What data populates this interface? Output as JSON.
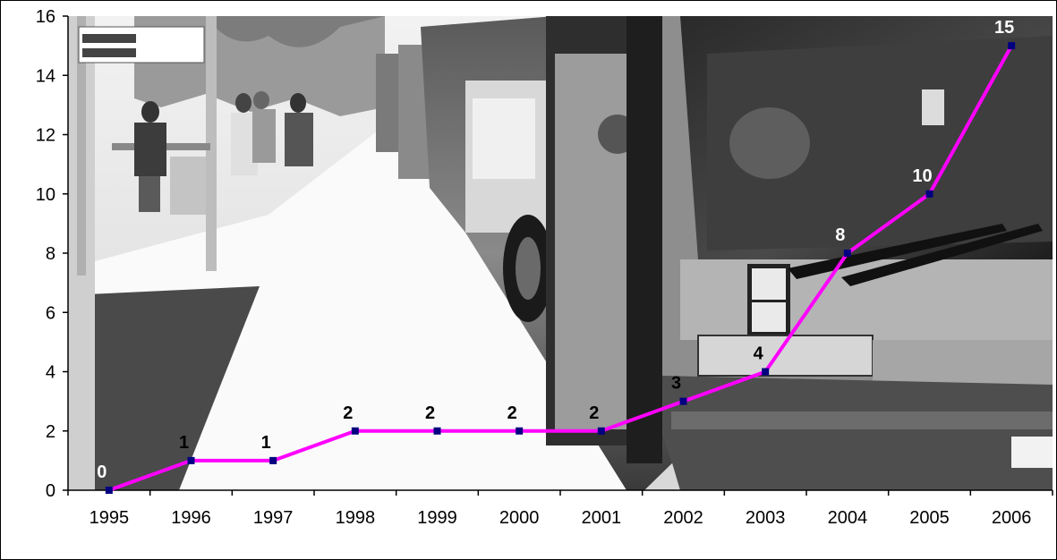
{
  "chart_data": {
    "type": "line",
    "categories": [
      "1995",
      "1996",
      "1997",
      "1998",
      "1999",
      "2000",
      "2001",
      "2002",
      "2003",
      "2004",
      "2005",
      "2006"
    ],
    "values": [
      0,
      1,
      1,
      2,
      2,
      2,
      2,
      3,
      4,
      8,
      10,
      15
    ],
    "data_labels": [
      "0",
      "1",
      "1",
      "2",
      "2",
      "2",
      "2",
      "3",
      "4",
      "8",
      "10",
      "15"
    ],
    "y_ticks": [
      "0",
      "2",
      "4",
      "6",
      "8",
      "10",
      "12",
      "14",
      "16"
    ],
    "ylim": [
      0,
      16
    ],
    "title": "",
    "xlabel": "",
    "ylabel": "",
    "grid": false,
    "legend": "none",
    "line_color": "#ff00ff",
    "marker_color": "#000080",
    "background": "photograph of a city bus at a stop, grayscale"
  }
}
